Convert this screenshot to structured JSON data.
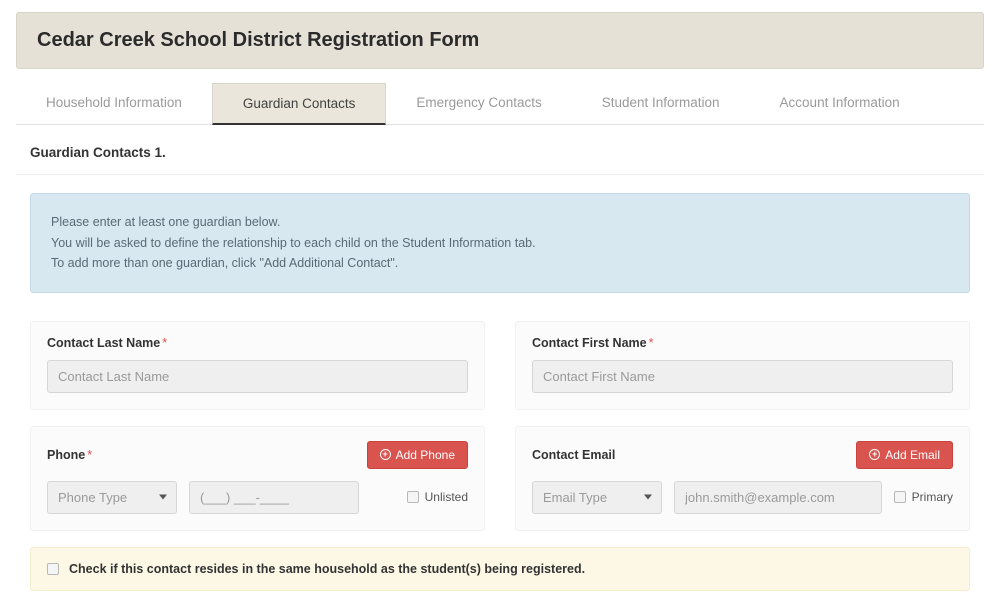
{
  "header": {
    "title": "Cedar Creek School District Registration Form"
  },
  "tabs": [
    {
      "label": "Household Information",
      "active": false
    },
    {
      "label": "Guardian Contacts",
      "active": true
    },
    {
      "label": "Emergency Contacts",
      "active": false
    },
    {
      "label": "Student Information",
      "active": false
    },
    {
      "label": "Account Information",
      "active": false
    }
  ],
  "section": {
    "title": "Guardian Contacts 1."
  },
  "info": {
    "line1": "Please enter at least one guardian below.",
    "line2": "You will be asked to define the relationship to each child on the Student Information tab.",
    "line3": "To add more than one guardian, click \"Add Additional Contact\"."
  },
  "fields": {
    "lastName": {
      "label": "Contact Last Name",
      "placeholder": "Contact Last Name",
      "required": true
    },
    "firstName": {
      "label": "Contact First Name",
      "placeholder": "Contact First Name",
      "required": true
    },
    "phone": {
      "label": "Phone",
      "required": true,
      "addLabel": "Add Phone",
      "typePlaceholder": "Phone Type",
      "numberPlaceholder": "(___) ___-____",
      "unlistedLabel": "Unlisted"
    },
    "email": {
      "label": "Contact Email",
      "required": false,
      "addLabel": "Add Email",
      "typePlaceholder": "Email Type",
      "addressPlaceholder": "john.smith@example.com",
      "primaryLabel": "Primary"
    }
  },
  "householdCheck": {
    "label": "Check if this contact resides in the same household as the student(s) being registered."
  }
}
